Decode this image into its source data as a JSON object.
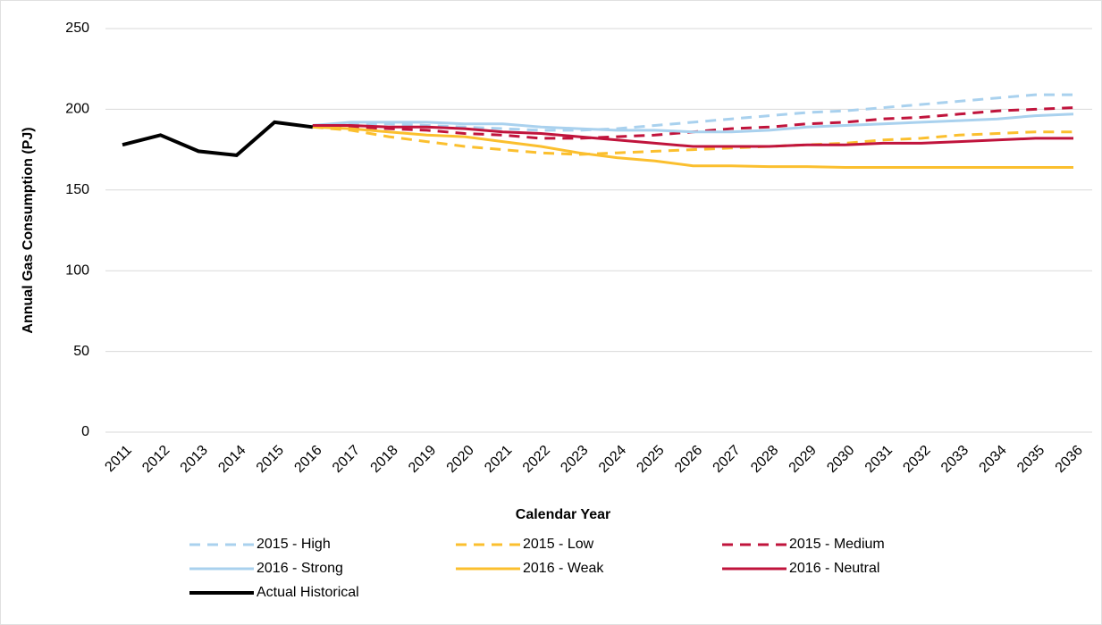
{
  "chart_data": {
    "type": "line",
    "x_label": "Calendar Year",
    "y_label": "Annual Gas Consumption (PJ)",
    "categories": [
      "2011",
      "2012",
      "2013",
      "2014",
      "2015",
      "2016",
      "2017",
      "2018",
      "2019",
      "2020",
      "2021",
      "2022",
      "2023",
      "2024",
      "2025",
      "2026",
      "2027",
      "2028",
      "2029",
      "2030",
      "2031",
      "2032",
      "2033",
      "2034",
      "2035",
      "2036"
    ],
    "ylim": [
      0,
      250
    ],
    "yticks": [
      0,
      50,
      100,
      150,
      200,
      250
    ],
    "grid": true,
    "series": [
      {
        "name": "2015 - High",
        "color": "#a9d1ee",
        "dashed": true,
        "values": [
          null,
          null,
          null,
          null,
          null,
          190,
          191,
          191,
          190,
          189,
          188,
          187,
          187,
          188,
          190,
          192,
          194,
          196,
          198,
          199,
          201,
          203,
          205,
          207,
          209,
          209
        ]
      },
      {
        "name": "2015 - Low",
        "color": "#fbbf2e",
        "dashed": true,
        "values": [
          null,
          null,
          null,
          null,
          null,
          189,
          187,
          183,
          180,
          177,
          175,
          173,
          172,
          173,
          174,
          175,
          176,
          177,
          178,
          179,
          181,
          182,
          184,
          185,
          186,
          186
        ]
      },
      {
        "name": "2015 - Medium",
        "color": "#c0143c",
        "dashed": true,
        "values": [
          null,
          null,
          null,
          null,
          null,
          190,
          189,
          188,
          187,
          185,
          184,
          182,
          182,
          183,
          184,
          186,
          188,
          189,
          191,
          192,
          194,
          195,
          197,
          199,
          200,
          201
        ]
      },
      {
        "name": "2016 - Strong",
        "color": "#a9d1ee",
        "dashed": false,
        "values": [
          null,
          null,
          null,
          null,
          null,
          190,
          192,
          192,
          192,
          191,
          191,
          189,
          188,
          187,
          187,
          186,
          186,
          187,
          189,
          190,
          191,
          192,
          193,
          194,
          196,
          197
        ]
      },
      {
        "name": "2016 - Weak",
        "color": "#fbbf2e",
        "dashed": false,
        "values": [
          null,
          null,
          null,
          null,
          null,
          189,
          188,
          186,
          184,
          183,
          180,
          177,
          173,
          170,
          168,
          165,
          165,
          164.5,
          164.5,
          164,
          164,
          164,
          164,
          164,
          164,
          164
        ]
      },
      {
        "name": "2016 - Neutral",
        "color": "#c0143c",
        "dashed": false,
        "values": [
          null,
          null,
          null,
          null,
          null,
          190,
          190,
          189,
          189,
          188,
          186,
          185,
          183,
          181,
          179,
          177,
          177,
          177,
          178,
          178,
          179,
          179,
          180,
          181,
          182,
          182
        ]
      },
      {
        "name": "Actual Historical",
        "color": "#000000",
        "dashed": false,
        "values": [
          178,
          184,
          174,
          171.5,
          192,
          189,
          null,
          null,
          null,
          null,
          null,
          null,
          null,
          null,
          null,
          null,
          null,
          null,
          null,
          null,
          null,
          null,
          null,
          null,
          null,
          null
        ]
      }
    ]
  }
}
